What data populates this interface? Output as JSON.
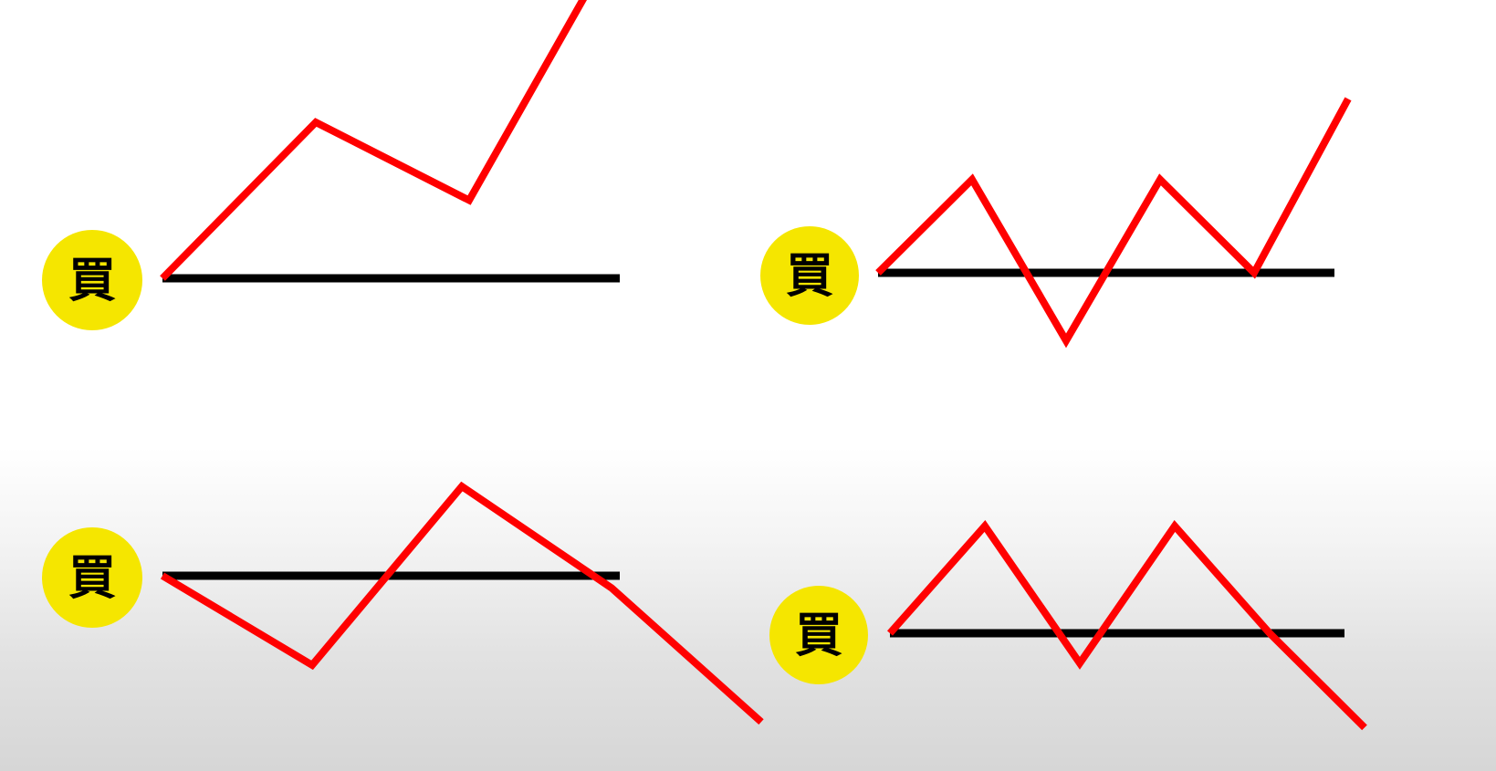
{
  "badge_label": "買",
  "colors": {
    "price_line": "#ff0000",
    "entry_line": "#000000",
    "badge_fill": "#f5e600"
  },
  "panels": [
    {
      "id": "top-left",
      "description_key": "rise-after-buy",
      "price_path": [
        [
          0,
          0
        ],
        [
          1,
          3
        ],
        [
          2,
          1.5
        ],
        [
          3,
          6.7
        ]
      ]
    },
    {
      "id": "top-right",
      "description_key": "whipsaw-then-rise",
      "price_path": [
        [
          0,
          0
        ],
        [
          1,
          2.2
        ],
        [
          2,
          -1.6
        ],
        [
          3,
          2.2
        ],
        [
          4,
          0
        ],
        [
          5,
          4.1
        ]
      ]
    },
    {
      "id": "bottom-left",
      "description_key": "dip-rise-fall",
      "price_path": [
        [
          0,
          0
        ],
        [
          1,
          -2.2
        ],
        [
          2,
          2.2
        ],
        [
          3,
          -0.3
        ],
        [
          4,
          -3.6
        ]
      ]
    },
    {
      "id": "bottom-right",
      "description_key": "double-top-fall",
      "price_path": [
        [
          0,
          0
        ],
        [
          1,
          2.5
        ],
        [
          2,
          -0.7
        ],
        [
          3,
          2.5
        ],
        [
          4,
          0
        ],
        [
          5,
          -2.2
        ]
      ]
    }
  ]
}
